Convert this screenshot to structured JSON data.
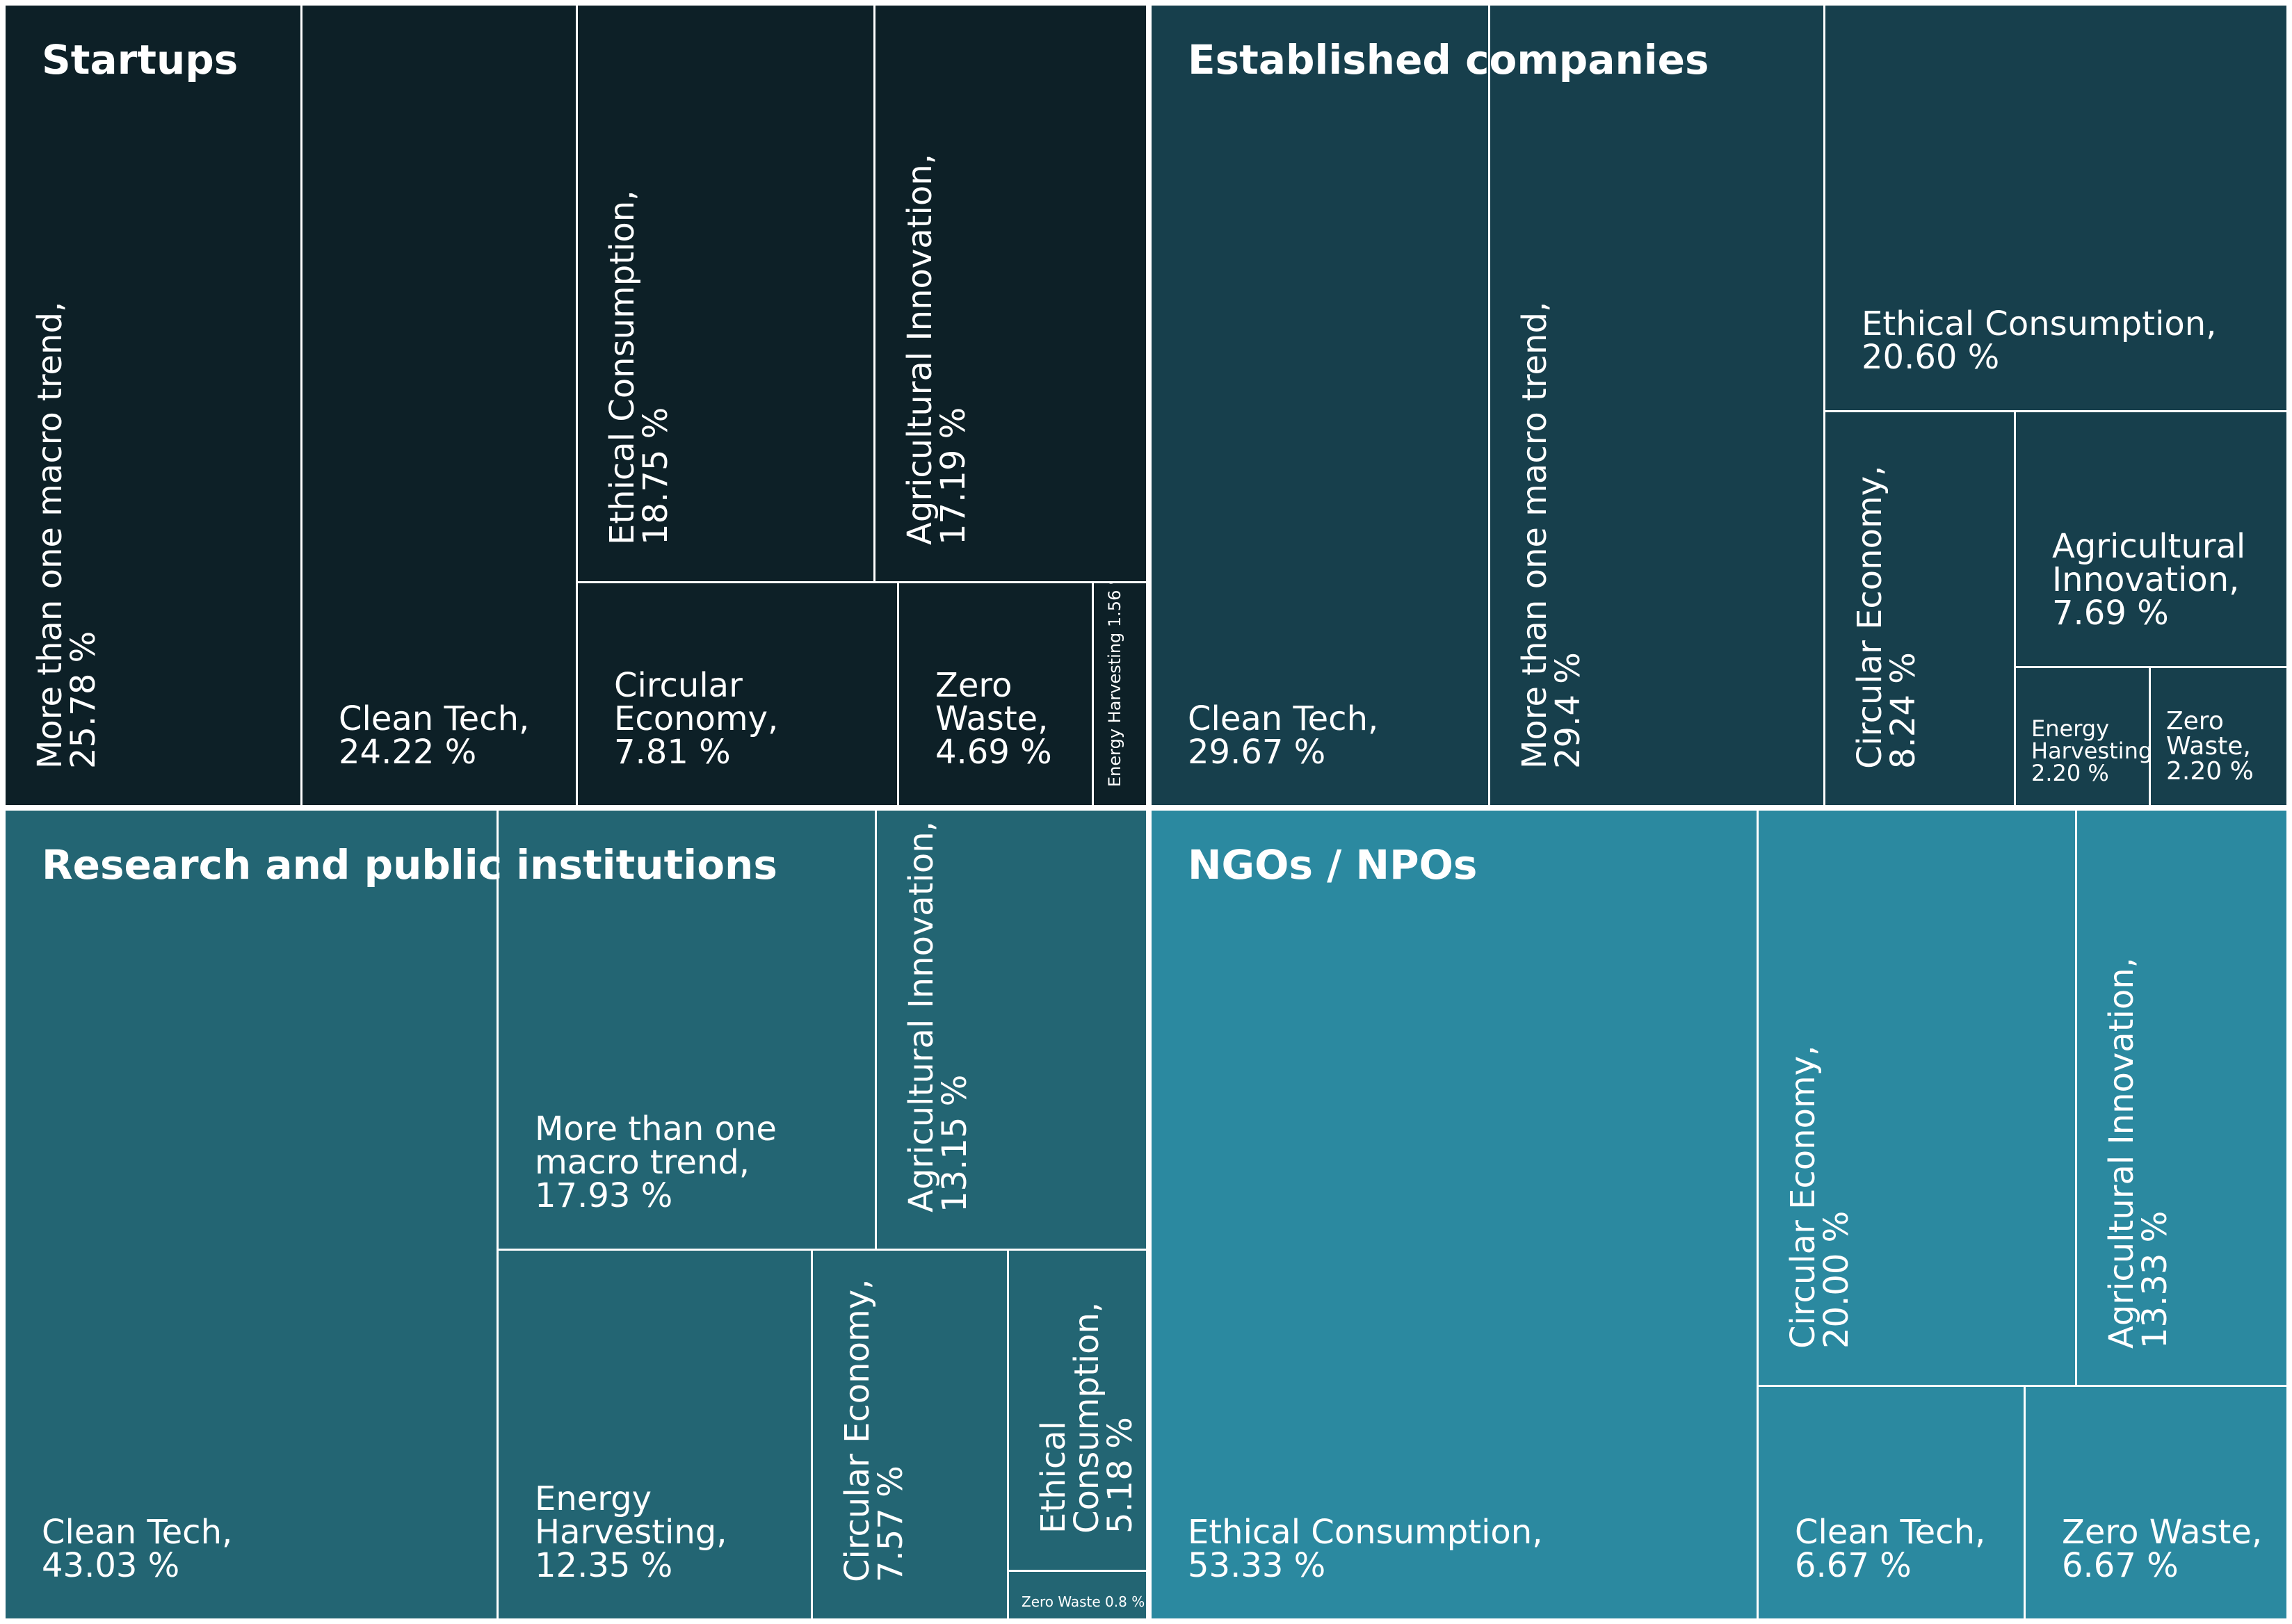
{
  "chart_data": {
    "type": "treemap",
    "colors": {
      "startups": "#0d2027",
      "established": "#173f4c",
      "research": "#236573",
      "ngos": "#2b89a0",
      "divider": "#ffffff"
    },
    "groups": [
      {
        "name": "Startups",
        "items": [
          {
            "label": "More than one macro trend,",
            "value": "25.78 %"
          },
          {
            "label": "Clean Tech,",
            "value": "24.22 %"
          },
          {
            "label": "Ethical Consumption,",
            "value": "18.75 %"
          },
          {
            "label": "Agricultural Innovation,",
            "value": "17.19 %"
          },
          {
            "label": "Circular Economy,",
            "value": "7.81 %"
          },
          {
            "label": "Zero Waste,",
            "value": "4.69 %"
          },
          {
            "label": "Energy Harvesting,",
            "value": "1.56 %"
          }
        ]
      },
      {
        "name": "Established companies",
        "items": [
          {
            "label": "Clean Tech,",
            "value": "29.67 %"
          },
          {
            "label": "More than one macro trend,",
            "value": "29.4 %"
          },
          {
            "label": "Ethical Consumption,",
            "value": "20.60 %"
          },
          {
            "label": "Circular Economy,",
            "value": "8.24 %"
          },
          {
            "label": "Agricultural Innovation,",
            "value": "7.69 %"
          },
          {
            "label": "Energy Harvesting,",
            "value": "2.20 %"
          },
          {
            "label": "Zero Waste,",
            "value": "2.20 %"
          }
        ]
      },
      {
        "name": "Research and public institutions",
        "items": [
          {
            "label": "Clean Tech,",
            "value": "43.03 %"
          },
          {
            "label": "More than one macro trend,",
            "value": "17.93 %"
          },
          {
            "label": "Agricultural Innovation,",
            "value": "13.15 %"
          },
          {
            "label": "Energy Harvesting,",
            "value": "12.35 %"
          },
          {
            "label": "Circular Economy,",
            "value": "7.57 %"
          },
          {
            "label": "Ethical Consumption,",
            "value": "5.18 %"
          },
          {
            "label": "Zero Waste,",
            "value": "0.8 %"
          }
        ]
      },
      {
        "name": "NGOs / NPOs",
        "items": [
          {
            "label": "Ethical Consumption,",
            "value": "53.33 %"
          },
          {
            "label": "Circular Economy,",
            "value": "20.00 %"
          },
          {
            "label": "Agricultural Innovation,",
            "value": "13.33 %"
          },
          {
            "label": "Clean Tech,",
            "value": "6.67 %"
          },
          {
            "label": "Zero Waste,",
            "value": "6.67 %"
          }
        ]
      }
    ]
  }
}
